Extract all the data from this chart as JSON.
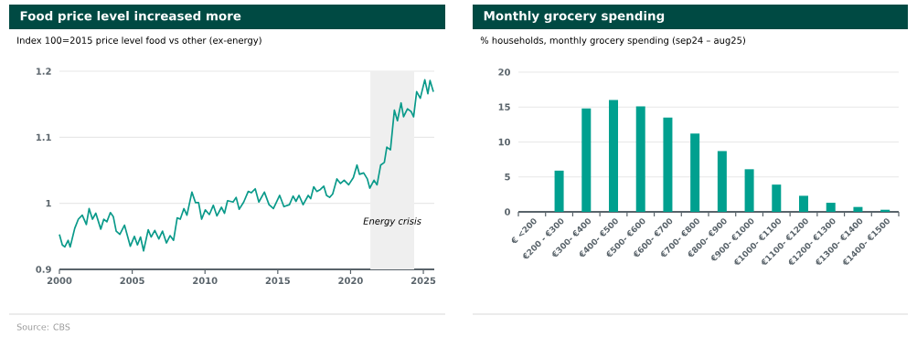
{
  "chart_data": [
    {
      "type": "line",
      "title": "Food price level increased more",
      "subtitle": "Index 100=2015 price level food vs other (ex-energy)",
      "annotations": [
        "Source: CBS"
      ],
      "x": [
        2000.0,
        2000.2,
        2000.37,
        2000.6,
        2000.74,
        2001.05,
        2001.3,
        2001.57,
        2001.85,
        2002.04,
        2002.27,
        2002.5,
        2002.84,
        2003.05,
        2003.26,
        2003.5,
        2003.7,
        2003.9,
        2004.15,
        2004.47,
        2004.87,
        2005.15,
        2005.36,
        2005.57,
        2005.78,
        2006.1,
        2006.3,
        2006.55,
        2006.83,
        2007.08,
        2007.35,
        2007.6,
        2007.84,
        2008.09,
        2008.3,
        2008.55,
        2008.76,
        2009.1,
        2009.35,
        2009.56,
        2009.77,
        2010.02,
        2010.3,
        2010.57,
        2010.82,
        2011.13,
        2011.34,
        2011.55,
        2011.93,
        2012.14,
        2012.35,
        2012.66,
        2012.97,
        2013.18,
        2013.45,
        2013.7,
        2014.08,
        2014.4,
        2014.7,
        2015.13,
        2015.42,
        2015.8,
        2016.05,
        2016.25,
        2016.46,
        2016.74,
        2017.09,
        2017.26,
        2017.47,
        2017.68,
        2017.93,
        2018.16,
        2018.35,
        2018.56,
        2018.77,
        2019.06,
        2019.31,
        2019.56,
        2019.87,
        2020.19,
        2020.44,
        2020.61,
        2020.9,
        2021.15,
        2021.32,
        2021.61,
        2021.82,
        2022.07,
        2022.32,
        2022.49,
        2022.74,
        2023.01,
        2023.22,
        2023.47,
        2023.64,
        2023.91,
        2024.16,
        2024.33,
        2024.54,
        2024.79,
        2025.1,
        2025.31,
        2025.46,
        2025.69
      ],
      "values": [
        0.953,
        0.937,
        0.934,
        0.944,
        0.934,
        0.962,
        0.976,
        0.982,
        0.968,
        0.992,
        0.976,
        0.985,
        0.961,
        0.976,
        0.972,
        0.986,
        0.98,
        0.958,
        0.953,
        0.967,
        0.935,
        0.95,
        0.937,
        0.949,
        0.928,
        0.96,
        0.949,
        0.959,
        0.946,
        0.958,
        0.94,
        0.951,
        0.944,
        0.978,
        0.976,
        0.992,
        0.982,
        1.017,
        1.001,
        1.001,
        0.976,
        0.99,
        0.983,
        0.997,
        0.981,
        0.994,
        0.985,
        1.004,
        1.002,
        1.009,
        0.991,
        1.002,
        1.018,
        1.016,
        1.022,
        1.002,
        1.017,
        0.998,
        0.992,
        1.012,
        0.995,
        0.998,
        1.011,
        1.003,
        1.012,
        0.998,
        1.012,
        1.007,
        1.025,
        1.018,
        1.021,
        1.026,
        1.012,
        1.009,
        1.014,
        1.037,
        1.03,
        1.035,
        1.028,
        1.039,
        1.058,
        1.044,
        1.046,
        1.037,
        1.023,
        1.035,
        1.028,
        1.058,
        1.062,
        1.085,
        1.081,
        1.141,
        1.125,
        1.152,
        1.131,
        1.143,
        1.139,
        1.131,
        1.169,
        1.159,
        1.187,
        1.166,
        1.186,
        1.169
      ],
      "color": "#0a9a8a",
      "xlim": [
        2000,
        2025.75
      ],
      "ylim": [
        0.9,
        1.2
      ],
      "xticks": [
        2000,
        2005,
        2010,
        2015,
        2020,
        2025
      ],
      "yticks": [
        0.9,
        1,
        1.1,
        1.2
      ],
      "grid": "y",
      "bands": [
        {
          "axis": "x",
          "from": 2021.36,
          "to": 2024.37,
          "label": "Energy crisis",
          "color": "#efefef"
        }
      ]
    },
    {
      "type": "bar",
      "title": "Monthly grocery spending",
      "subtitle": "% households, monthly grocery spending (sep24 – aug25)",
      "categories": [
        "€ <200",
        "€200 - €300",
        "€300- €400",
        "€400- €500",
        "€500- €600",
        "€600- €700",
        "€700- €800",
        "€800- €900",
        "€900- €1000",
        "€1000- €1100",
        "€1100- €1200",
        "€1200- €1300",
        "€1300- €1400",
        "€1400- €1500"
      ],
      "values": [
        0,
        5.9,
        14.8,
        16.0,
        15.1,
        13.5,
        11.2,
        8.7,
        6.1,
        3.9,
        2.3,
        1.3,
        0.7,
        0.3
      ],
      "color": "#00a08f",
      "ylim": [
        0,
        20
      ],
      "yticks": [
        0,
        5,
        10,
        15,
        20
      ],
      "grid": "y"
    }
  ]
}
